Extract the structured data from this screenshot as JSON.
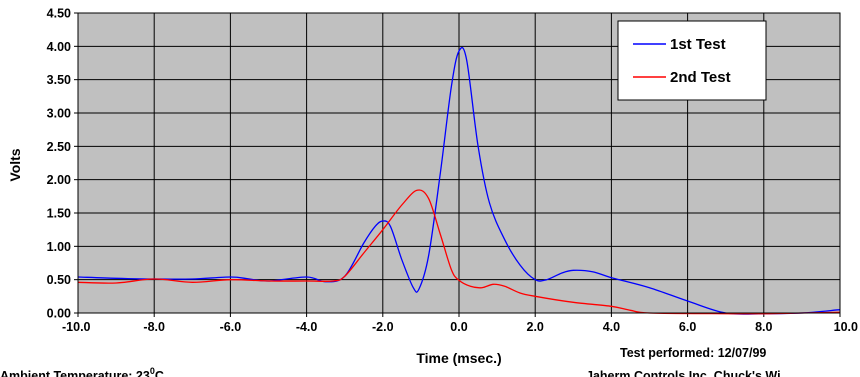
{
  "chart_data": {
    "type": "line",
    "title": "",
    "xlabel": "Time (msec.)",
    "ylabel": "Volts",
    "xlim": [
      -10,
      10
    ],
    "ylim": [
      0,
      4.5
    ],
    "x_ticks": [
      -10,
      -8,
      -6,
      -4,
      -2,
      0,
      2,
      4,
      6,
      8,
      10
    ],
    "x_tick_labels": [
      "-10.0",
      "-8.0",
      "-6.0",
      "-4.0",
      "-2.0",
      "0.0",
      "2.0",
      "4.0",
      "6.0",
      "8.0",
      "10.0"
    ],
    "y_ticks": [
      0,
      0.5,
      1,
      1.5,
      2,
      2.5,
      3,
      3.5,
      4,
      4.5
    ],
    "y_tick_labels": [
      "0.00",
      "0.50",
      "1.00",
      "1.50",
      "2.00",
      "2.50",
      "3.00",
      "3.50",
      "4.00",
      "4.50"
    ],
    "grid": true,
    "plot_background": "#c0c0c0",
    "legend": {
      "position": "top-right"
    },
    "series": [
      {
        "name": "1st Test",
        "color": "#0000ff",
        "points": [
          [
            -10,
            0.54
          ],
          [
            -9,
            0.52
          ],
          [
            -8,
            0.51
          ],
          [
            -7,
            0.51
          ],
          [
            -6,
            0.54
          ],
          [
            -5.5,
            0.51
          ],
          [
            -5,
            0.48
          ],
          [
            -4,
            0.54
          ],
          [
            -3.5,
            0.47
          ],
          [
            -3,
            0.55
          ],
          [
            -2.5,
            1.05
          ],
          [
            -2.2,
            1.3
          ],
          [
            -2,
            1.38
          ],
          [
            -1.8,
            1.3
          ],
          [
            -1.5,
            0.8
          ],
          [
            -1.2,
            0.38
          ],
          [
            -1.05,
            0.36
          ],
          [
            -0.8,
            0.85
          ],
          [
            -0.5,
            2.05
          ],
          [
            -0.2,
            3.4
          ],
          [
            0,
            3.93
          ],
          [
            0.2,
            3.8
          ],
          [
            0.5,
            2.5
          ],
          [
            0.8,
            1.65
          ],
          [
            1.2,
            1.1
          ],
          [
            1.6,
            0.72
          ],
          [
            2,
            0.5
          ],
          [
            2.3,
            0.5
          ],
          [
            2.7,
            0.6
          ],
          [
            3,
            0.64
          ],
          [
            3.5,
            0.62
          ],
          [
            4,
            0.53
          ],
          [
            5,
            0.38
          ],
          [
            6,
            0.18
          ],
          [
            7,
            0
          ],
          [
            8,
            -0.01
          ],
          [
            9,
            0
          ],
          [
            10,
            0.05
          ]
        ]
      },
      {
        "name": "2nd Test",
        "color": "#ff0000",
        "points": [
          [
            -10,
            0.46
          ],
          [
            -9,
            0.45
          ],
          [
            -8,
            0.51
          ],
          [
            -7,
            0.46
          ],
          [
            -6,
            0.5
          ],
          [
            -5,
            0.48
          ],
          [
            -4,
            0.48
          ],
          [
            -3.3,
            0.48
          ],
          [
            -3,
            0.55
          ],
          [
            -2.5,
            0.9
          ],
          [
            -2,
            1.25
          ],
          [
            -1.5,
            1.62
          ],
          [
            -1.1,
            1.84
          ],
          [
            -0.8,
            1.72
          ],
          [
            -0.5,
            1.2
          ],
          [
            -0.2,
            0.65
          ],
          [
            0,
            0.49
          ],
          [
            0.3,
            0.4
          ],
          [
            0.6,
            0.38
          ],
          [
            0.9,
            0.43
          ],
          [
            1.2,
            0.4
          ],
          [
            1.6,
            0.3
          ],
          [
            2,
            0.25
          ],
          [
            3,
            0.16
          ],
          [
            4,
            0.1
          ],
          [
            4.5,
            0.04
          ],
          [
            5,
            0
          ],
          [
            7,
            -0.01
          ],
          [
            8,
            -0.01
          ],
          [
            9,
            0
          ],
          [
            10,
            0.01
          ]
        ]
      }
    ]
  },
  "notes": {
    "test_performed": "Test performed:  12/07/99",
    "ambient_temperature": "Ambient Temperature:   23",
    "ambient_degree": "0",
    "ambient_unit": "C",
    "credit": "Jaherm Controls Inc. Chuck's Wi"
  }
}
